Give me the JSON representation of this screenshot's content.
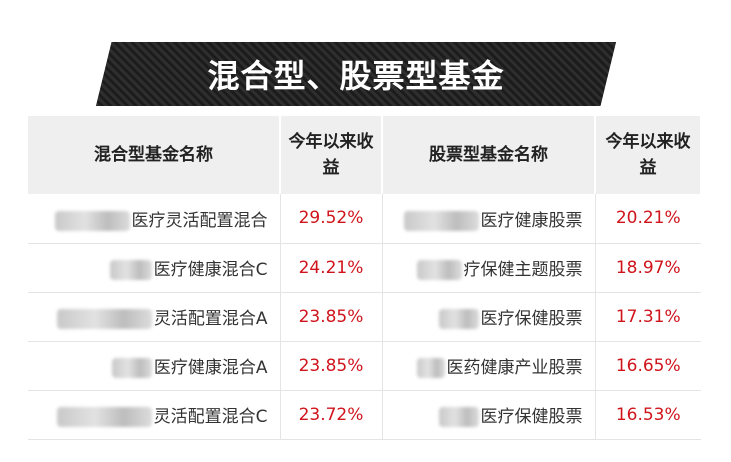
{
  "banner": {
    "title": "混合型、股票型基金"
  },
  "table": {
    "headers": {
      "mixed_name": "混合型基金名称",
      "mixed_return": "今年以来收益",
      "stock_name": "股票型基金名称",
      "stock_return": "今年以来收益"
    },
    "rows": [
      {
        "mixed_name": "医疗灵活配置混合",
        "mixed_return": "29.52%",
        "stock_name": "医疗健康股票",
        "stock_return": "20.21%"
      },
      {
        "mixed_name": "医疗健康混合C",
        "mixed_return": "24.21%",
        "stock_name": "疗保健主题股票",
        "stock_return": "18.97%"
      },
      {
        "mixed_name": "灵活配置混合A",
        "mixed_return": "23.85%",
        "stock_name": "医疗保健股票",
        "stock_return": "17.31%"
      },
      {
        "mixed_name": "医疗健康混合A",
        "mixed_return": "23.85%",
        "stock_name": "医药健康产业股票",
        "stock_return": "16.65%"
      },
      {
        "mixed_name": "灵活配置混合C",
        "mixed_return": "23.72%",
        "stock_name": "医疗保健股票",
        "stock_return": "16.53%"
      }
    ]
  },
  "colors": {
    "return_text": "#d0141c",
    "header_bg": "#efefef",
    "banner_bg": "#262626"
  }
}
